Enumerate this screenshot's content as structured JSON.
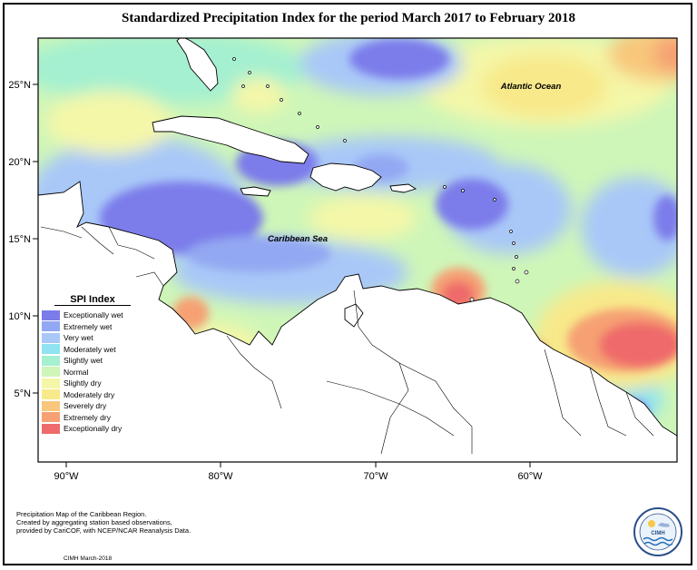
{
  "title": "Standardized Precipitation Index for the period March 2017 to February 2018",
  "map": {
    "labels": {
      "atlantic": "Atlantic Ocean",
      "caribbean": "Caribbean Sea"
    },
    "lon_ticks": [
      "90°W",
      "80°W",
      "70°W",
      "60°W"
    ],
    "lat_ticks": [
      "25°N",
      "20°N",
      "15°N",
      "10°N",
      "5°N"
    ]
  },
  "legend": {
    "title": "SPI Index",
    "items": [
      {
        "label": "Exceptionally wet",
        "color": "#7b7bea"
      },
      {
        "label": "Extremely wet",
        "color": "#93a8f2"
      },
      {
        "label": "Very wet",
        "color": "#a9c8f8"
      },
      {
        "label": "Moderately wet",
        "color": "#8fe3f2"
      },
      {
        "label": "Slightly wet",
        "color": "#a4f0d0"
      },
      {
        "label": "Normal",
        "color": "#cef6b8"
      },
      {
        "label": "Slightly dry",
        "color": "#f4f7a8"
      },
      {
        "label": "Moderately dry",
        "color": "#f8e98a"
      },
      {
        "label": "Severely dry",
        "color": "#f8c77c"
      },
      {
        "label": "Extremely dry",
        "color": "#f6a073"
      },
      {
        "label": "Exceptionally dry",
        "color": "#ef6b6b"
      }
    ]
  },
  "footer": {
    "lines": [
      "Precipitation Map of the Caribbean Region.",
      "Created by aggregating station based observations,",
      "provided by CariCOF, with NCEP/NCAR Reanalysis Data."
    ],
    "credit": "CIMH March-2018"
  },
  "logo": {
    "text": "CIMH"
  }
}
